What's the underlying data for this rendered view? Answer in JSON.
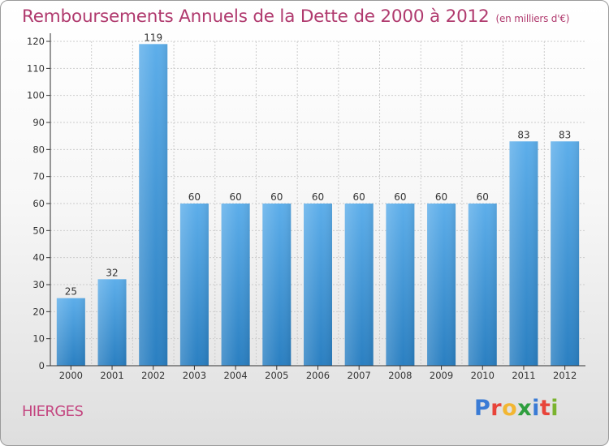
{
  "chart_title": "Remboursements Annuels de la Dette de 2000 à 2012",
  "chart_unit": "(en milliers d'€)",
  "place_name": "HIERGES",
  "brand": {
    "letters": [
      "P",
      "r",
      "o",
      "x",
      "i",
      "t",
      "i"
    ],
    "colors": [
      "#3a7bd5",
      "#e8443a",
      "#f2b632",
      "#2e9e3e",
      "#3a7bd5",
      "#e8443a",
      "#7ab32e"
    ]
  },
  "colors": {
    "title": "#b03a6e",
    "bar_light": "#5daeea",
    "bar_dark": "#2a7fc1",
    "axis": "#333333",
    "grid": "#cccccc"
  },
  "chart_data": {
    "type": "bar",
    "categories": [
      "2000",
      "2001",
      "2002",
      "2003",
      "2004",
      "2005",
      "2006",
      "2007",
      "2008",
      "2009",
      "2010",
      "2011",
      "2012"
    ],
    "values": [
      25,
      32,
      119,
      60,
      60,
      60,
      60,
      60,
      60,
      60,
      60,
      83,
      83
    ],
    "data_labels": [
      "25",
      "32",
      "119",
      "60",
      "60",
      "60",
      "60",
      "60",
      "60",
      "60",
      "60",
      "83",
      "83"
    ],
    "title": "Remboursements Annuels de la Dette de 2000 à 2012",
    "unit": "(en milliers d'€)",
    "xlabel": "",
    "ylabel": "",
    "ylim": [
      0,
      120
    ],
    "yticks": [
      0,
      10,
      20,
      30,
      40,
      50,
      60,
      70,
      80,
      90,
      100,
      110,
      120
    ],
    "grid": true,
    "legend": "none"
  }
}
